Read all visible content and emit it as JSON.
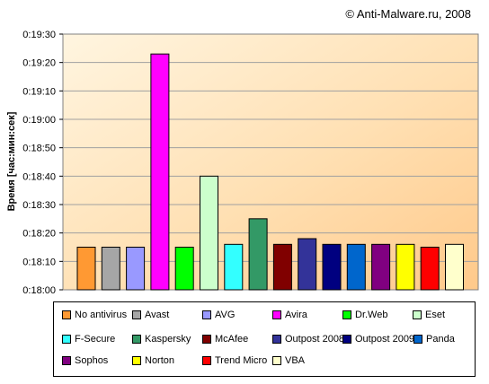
{
  "copyright": "© Anti-Malware.ru, 2008",
  "chart_data": {
    "type": "bar",
    "title": "",
    "xlabel": "",
    "ylabel": "Время [час:мин:сек]",
    "ylim_seconds": [
      1080,
      1170
    ],
    "yticks": [
      "0:18:00",
      "0:18:10",
      "0:18:20",
      "0:18:30",
      "0:18:40",
      "0:18:50",
      "0:19:00",
      "0:19:10",
      "0:19:20",
      "0:19:30"
    ],
    "grid": "horizontal",
    "legend_position": "bottom",
    "categories": [
      "No antivirus",
      "Avast",
      "AVG",
      "Avira",
      "Dr.Web",
      "Eset",
      "F-Secure",
      "Kaspersky",
      "McAfee",
      "Outpost 2008",
      "Outpost 2009",
      "Panda",
      "Sophos",
      "Norton",
      "Trend Micro",
      "VBA"
    ],
    "values": [
      "0:18:15",
      "0:18:15",
      "0:18:15",
      "0:19:23",
      "0:18:15",
      "0:18:40",
      "0:18:16",
      "0:18:25",
      "0:18:16",
      "0:18:18",
      "0:18:16",
      "0:18:16",
      "0:18:16",
      "0:18:16",
      "0:18:15",
      "0:18:16"
    ],
    "colors": [
      "#ff9933",
      "#a6a6a6",
      "#9999ff",
      "#ff00ff",
      "#00ff00",
      "#ccffcc",
      "#33ffff",
      "#339966",
      "#800000",
      "#333399",
      "#000080",
      "#0066cc",
      "#800080",
      "#ffff00",
      "#ff0000",
      "#ffffcc"
    ]
  }
}
